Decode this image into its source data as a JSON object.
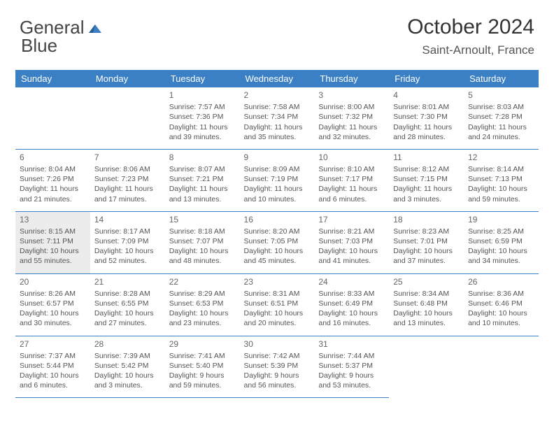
{
  "brand": {
    "part1": "General",
    "part2": "Blue"
  },
  "title": "October 2024",
  "location": "Saint-Arnoult, France",
  "colors": {
    "header_bg": "#3b7fc4",
    "header_text": "#ffffff",
    "cell_border": "#3b7fc4",
    "shade_bg": "#ececec",
    "text": "#555555"
  },
  "weekdays": [
    "Sunday",
    "Monday",
    "Tuesday",
    "Wednesday",
    "Thursday",
    "Friday",
    "Saturday"
  ],
  "weeks": [
    [
      null,
      null,
      {
        "n": 1,
        "sunrise": "7:57 AM",
        "sunset": "7:36 PM",
        "daylight": "11 hours and 39 minutes."
      },
      {
        "n": 2,
        "sunrise": "7:58 AM",
        "sunset": "7:34 PM",
        "daylight": "11 hours and 35 minutes."
      },
      {
        "n": 3,
        "sunrise": "8:00 AM",
        "sunset": "7:32 PM",
        "daylight": "11 hours and 32 minutes."
      },
      {
        "n": 4,
        "sunrise": "8:01 AM",
        "sunset": "7:30 PM",
        "daylight": "11 hours and 28 minutes."
      },
      {
        "n": 5,
        "sunrise": "8:03 AM",
        "sunset": "7:28 PM",
        "daylight": "11 hours and 24 minutes."
      }
    ],
    [
      {
        "n": 6,
        "sunrise": "8:04 AM",
        "sunset": "7:26 PM",
        "daylight": "11 hours and 21 minutes."
      },
      {
        "n": 7,
        "sunrise": "8:06 AM",
        "sunset": "7:23 PM",
        "daylight": "11 hours and 17 minutes."
      },
      {
        "n": 8,
        "sunrise": "8:07 AM",
        "sunset": "7:21 PM",
        "daylight": "11 hours and 13 minutes."
      },
      {
        "n": 9,
        "sunrise": "8:09 AM",
        "sunset": "7:19 PM",
        "daylight": "11 hours and 10 minutes."
      },
      {
        "n": 10,
        "sunrise": "8:10 AM",
        "sunset": "7:17 PM",
        "daylight": "11 hours and 6 minutes."
      },
      {
        "n": 11,
        "sunrise": "8:12 AM",
        "sunset": "7:15 PM",
        "daylight": "11 hours and 3 minutes."
      },
      {
        "n": 12,
        "sunrise": "8:14 AM",
        "sunset": "7:13 PM",
        "daylight": "10 hours and 59 minutes."
      }
    ],
    [
      {
        "n": 13,
        "sunrise": "8:15 AM",
        "sunset": "7:11 PM",
        "daylight": "10 hours and 55 minutes."
      },
      {
        "n": 14,
        "sunrise": "8:17 AM",
        "sunset": "7:09 PM",
        "daylight": "10 hours and 52 minutes."
      },
      {
        "n": 15,
        "sunrise": "8:18 AM",
        "sunset": "7:07 PM",
        "daylight": "10 hours and 48 minutes."
      },
      {
        "n": 16,
        "sunrise": "8:20 AM",
        "sunset": "7:05 PM",
        "daylight": "10 hours and 45 minutes."
      },
      {
        "n": 17,
        "sunrise": "8:21 AM",
        "sunset": "7:03 PM",
        "daylight": "10 hours and 41 minutes."
      },
      {
        "n": 18,
        "sunrise": "8:23 AM",
        "sunset": "7:01 PM",
        "daylight": "10 hours and 37 minutes."
      },
      {
        "n": 19,
        "sunrise": "8:25 AM",
        "sunset": "6:59 PM",
        "daylight": "10 hours and 34 minutes."
      }
    ],
    [
      {
        "n": 20,
        "sunrise": "8:26 AM",
        "sunset": "6:57 PM",
        "daylight": "10 hours and 30 minutes."
      },
      {
        "n": 21,
        "sunrise": "8:28 AM",
        "sunset": "6:55 PM",
        "daylight": "10 hours and 27 minutes."
      },
      {
        "n": 22,
        "sunrise": "8:29 AM",
        "sunset": "6:53 PM",
        "daylight": "10 hours and 23 minutes."
      },
      {
        "n": 23,
        "sunrise": "8:31 AM",
        "sunset": "6:51 PM",
        "daylight": "10 hours and 20 minutes."
      },
      {
        "n": 24,
        "sunrise": "8:33 AM",
        "sunset": "6:49 PM",
        "daylight": "10 hours and 16 minutes."
      },
      {
        "n": 25,
        "sunrise": "8:34 AM",
        "sunset": "6:48 PM",
        "daylight": "10 hours and 13 minutes."
      },
      {
        "n": 26,
        "sunrise": "8:36 AM",
        "sunset": "6:46 PM",
        "daylight": "10 hours and 10 minutes."
      }
    ],
    [
      {
        "n": 27,
        "sunrise": "7:37 AM",
        "sunset": "5:44 PM",
        "daylight": "10 hours and 6 minutes."
      },
      {
        "n": 28,
        "sunrise": "7:39 AM",
        "sunset": "5:42 PM",
        "daylight": "10 hours and 3 minutes."
      },
      {
        "n": 29,
        "sunrise": "7:41 AM",
        "sunset": "5:40 PM",
        "daylight": "9 hours and 59 minutes."
      },
      {
        "n": 30,
        "sunrise": "7:42 AM",
        "sunset": "5:39 PM",
        "daylight": "9 hours and 56 minutes."
      },
      {
        "n": 31,
        "sunrise": "7:44 AM",
        "sunset": "5:37 PM",
        "daylight": "9 hours and 53 minutes."
      },
      null,
      null
    ]
  ],
  "shaded_days": [
    13
  ]
}
